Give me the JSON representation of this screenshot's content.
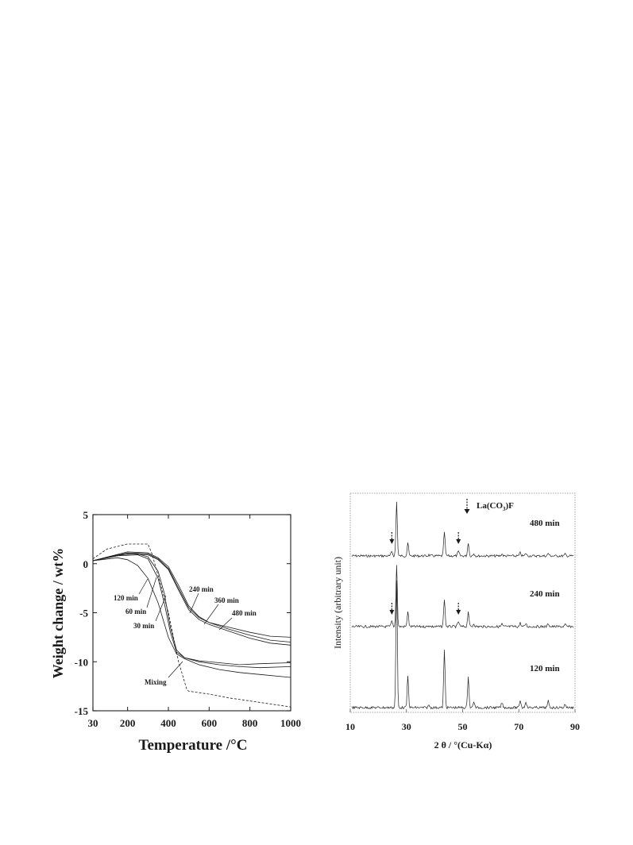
{
  "chart_data": [
    {
      "type": "line",
      "xlabel": "Temperature /°C",
      "ylabel": "Weight change / wt%",
      "xlim": [
        30,
        1000
      ],
      "ylim": [
        -15,
        5
      ],
      "xticks": [
        30,
        200,
        400,
        600,
        800,
        1000
      ],
      "yticks": [
        5,
        0,
        -5,
        -10,
        -15
      ],
      "grid": false,
      "series": [
        {
          "name": "30 min",
          "style": "solid",
          "x": [
            30,
            150,
            250,
            300,
            350,
            380,
            410,
            440,
            480,
            550,
            650,
            750,
            850,
            1000
          ],
          "y": [
            0.3,
            0.8,
            0.9,
            0.5,
            -1.5,
            -4.0,
            -7.0,
            -9.0,
            -9.6,
            -10.0,
            -10.3,
            -10.5,
            -10.6,
            -10.5
          ]
        },
        {
          "name": "60 min",
          "style": "solid",
          "x": [
            30,
            150,
            250,
            300,
            350,
            380,
            410,
            440,
            480,
            550,
            650,
            750,
            850,
            1000
          ],
          "y": [
            0.3,
            0.9,
            1.0,
            0.7,
            -0.8,
            -3.0,
            -6.5,
            -8.8,
            -9.6,
            -9.9,
            -10.1,
            -10.3,
            -10.2,
            -10.1
          ]
        },
        {
          "name": "120 min",
          "style": "solid",
          "x": [
            30,
            150,
            200,
            250,
            300,
            350,
            400,
            440,
            480,
            550,
            650,
            750,
            850,
            1000
          ],
          "y": [
            0.3,
            0.6,
            0.4,
            -0.2,
            -1.5,
            -4.0,
            -7.5,
            -9.2,
            -9.7,
            -10.3,
            -10.8,
            -11.1,
            -11.3,
            -11.6
          ]
        },
        {
          "name": "240 min",
          "style": "solid",
          "x": [
            30,
            200,
            300,
            350,
            400,
            450,
            500,
            550,
            600,
            700,
            800,
            900,
            1000
          ],
          "y": [
            0.3,
            1.1,
            1.0,
            0.5,
            -0.5,
            -2.5,
            -4.5,
            -5.5,
            -6.0,
            -6.5,
            -7.0,
            -7.4,
            -7.5
          ]
        },
        {
          "name": "360 min",
          "style": "solid",
          "x": [
            30,
            200,
            300,
            350,
            400,
            450,
            500,
            550,
            600,
            700,
            800,
            900,
            1000
          ],
          "y": [
            0.3,
            1.2,
            1.1,
            0.6,
            -0.3,
            -2.2,
            -4.3,
            -5.4,
            -6.0,
            -6.7,
            -7.3,
            -7.8,
            -8.0
          ]
        },
        {
          "name": "480 min",
          "style": "solid",
          "x": [
            30,
            200,
            300,
            350,
            400,
            450,
            500,
            550,
            600,
            700,
            800,
            900,
            1000
          ],
          "y": [
            0.3,
            1.0,
            0.9,
            0.4,
            -0.6,
            -2.7,
            -4.7,
            -5.7,
            -6.2,
            -6.9,
            -7.6,
            -8.1,
            -8.3
          ]
        },
        {
          "name": "Mixing",
          "style": "dashed",
          "x": [
            30,
            100,
            200,
            300,
            320,
            400,
            450,
            490,
            500,
            600,
            700,
            800,
            900,
            1000
          ],
          "y": [
            0.5,
            1.5,
            2.0,
            2.0,
            1.0,
            -5.0,
            -10.0,
            -12.8,
            -13.0,
            -13.3,
            -13.7,
            -14.0,
            -14.3,
            -14.6
          ]
        }
      ],
      "annotations": [
        "120 min",
        "60 min",
        "30 min",
        "240 min",
        "360 min",
        "480 min",
        "Mixing"
      ]
    },
    {
      "type": "line",
      "xlabel": "2 θ / °(Cu-Kα)",
      "ylabel": "Intensity (arbitrary unit)",
      "xlim": [
        10,
        90
      ],
      "xticks": [
        10,
        30,
        50,
        70,
        90
      ],
      "grid": false,
      "legend": "↓ La(CO3)F",
      "peaks": [
        {
          "x": 26.5,
          "height": 1.0
        },
        {
          "x": 30.5,
          "height": 0.25
        },
        {
          "x": 43.5,
          "height": 0.45
        },
        {
          "x": 52.0,
          "height": 0.25
        },
        {
          "x": 54.0,
          "height": 0.05
        },
        {
          "x": 64.0,
          "height": 0.04
        },
        {
          "x": 70.5,
          "height": 0.06
        },
        {
          "x": 72.5,
          "height": 0.05
        },
        {
          "x": 80.5,
          "height": 0.05
        },
        {
          "x": 86.5,
          "height": 0.03
        },
        {
          "x": 38.0,
          "height": 0.02
        }
      ],
      "series": [
        {
          "name": "480 min",
          "La(CO3)F_peaks": [
            24.8,
            48.5
          ]
        },
        {
          "name": "240 min",
          "La(CO3)F_peaks": [
            24.8,
            48.5
          ]
        },
        {
          "name": "120 min",
          "La(CO3)F_peaks": []
        }
      ]
    }
  ],
  "tga": {
    "xlabel": "Temperature /°C",
    "ylabel": "Weight change / wt%",
    "labels": {
      "l120": "120 min",
      "l60": "60 min",
      "l30": "30 min",
      "l240": "240 min",
      "l360": "360 min",
      "l480": "480 min",
      "mixing": "Mixing"
    }
  },
  "xrd": {
    "xlabel": "2 θ / °(Cu-Kα)",
    "ylabel": "Intensity  (arbitrary unit)",
    "legend_text": "La(CO",
    "legend_sub": "3",
    "legend_tail": ")F",
    "trace_labels": [
      "480 min",
      "240 min",
      "120 min"
    ]
  },
  "colors": {
    "ink": "#1a1a1a",
    "frame": "#333333"
  }
}
